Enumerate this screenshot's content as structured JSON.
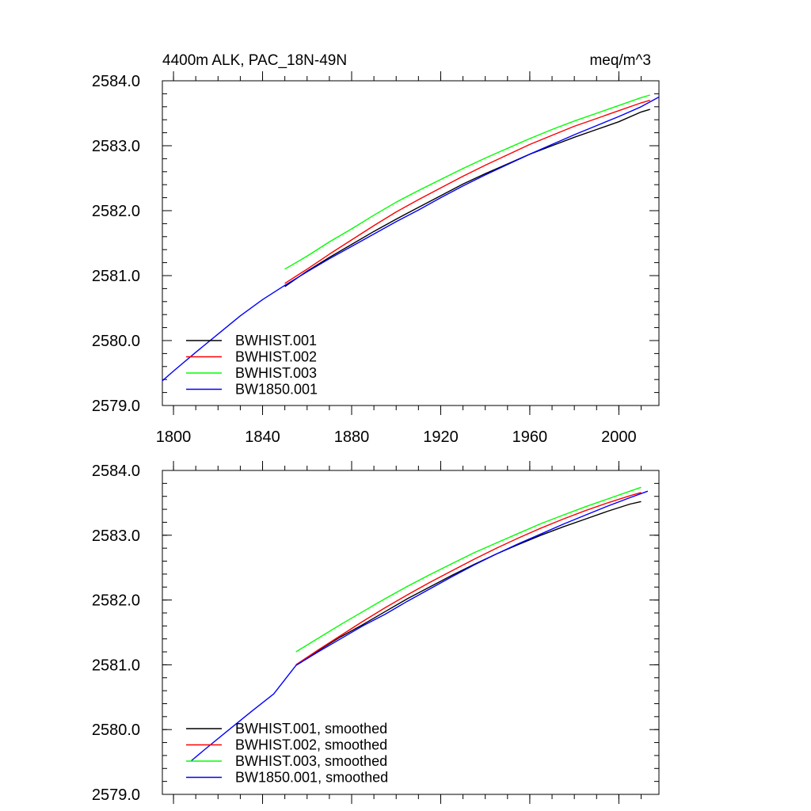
{
  "chart_data": [
    {
      "type": "line",
      "title_left": "4400m ALK, PAC_18N-49N",
      "title_right": "meq/m^3",
      "xlabel": "",
      "ylabel": "",
      "xlim": [
        1795,
        2018
      ],
      "ylim": [
        2579.0,
        2584.0
      ],
      "xticks": [
        1800,
        1840,
        1880,
        1920,
        1960,
        2000
      ],
      "xtick_labels": [
        "1800",
        "1840",
        "1880",
        "1920",
        "1960",
        "2000"
      ],
      "yticks": [
        2579.0,
        2580.0,
        2581.0,
        2582.0,
        2583.0,
        2584.0
      ],
      "ytick_labels": [
        "2579.0",
        "2580.0",
        "2581.0",
        "2582.0",
        "2583.0",
        "2584.0"
      ],
      "grid": false,
      "legend_position": "bottom-left",
      "series": [
        {
          "name": "BWHIST.001",
          "color": "#000000",
          "x": [
            1850,
            1860,
            1870,
            1880,
            1890,
            1900,
            1910,
            1920,
            1930,
            1940,
            1950,
            1960,
            1970,
            1980,
            1990,
            2000,
            2010,
            2014
          ],
          "y": [
            2580.83,
            2581.07,
            2581.28,
            2581.48,
            2581.68,
            2581.87,
            2582.05,
            2582.23,
            2582.41,
            2582.57,
            2582.72,
            2582.87,
            2583.0,
            2583.13,
            2583.25,
            2583.37,
            2583.52,
            2583.56
          ]
        },
        {
          "name": "BWHIST.002",
          "color": "#ff0000",
          "x": [
            1850,
            1860,
            1870,
            1880,
            1890,
            1900,
            1910,
            1920,
            1930,
            1940,
            1950,
            1960,
            1970,
            1980,
            1990,
            2000,
            2010,
            2014
          ],
          "y": [
            2580.88,
            2581.1,
            2581.33,
            2581.55,
            2581.77,
            2581.98,
            2582.17,
            2582.35,
            2582.53,
            2582.7,
            2582.86,
            2583.02,
            2583.16,
            2583.3,
            2583.42,
            2583.54,
            2583.66,
            2583.7
          ]
        },
        {
          "name": "BWHIST.003",
          "color": "#00ff00",
          "x": [
            1850,
            1860,
            1870,
            1880,
            1890,
            1900,
            1910,
            1920,
            1930,
            1940,
            1950,
            1960,
            1970,
            1980,
            1990,
            2000,
            2010,
            2014
          ],
          "y": [
            2581.1,
            2581.3,
            2581.52,
            2581.72,
            2581.93,
            2582.13,
            2582.31,
            2582.48,
            2582.65,
            2582.81,
            2582.96,
            2583.11,
            2583.25,
            2583.38,
            2583.5,
            2583.62,
            2583.74,
            2583.78
          ]
        },
        {
          "name": "BW1850.001",
          "color": "#0000ff",
          "x": [
            1795,
            1800,
            1810,
            1820,
            1830,
            1840,
            1850,
            1860,
            1870,
            1880,
            1890,
            1900,
            1910,
            1920,
            1930,
            1940,
            1950,
            1960,
            1970,
            1980,
            1990,
            2000,
            2010,
            2018
          ],
          "y": [
            2579.38,
            2579.53,
            2579.82,
            2580.1,
            2580.38,
            2580.63,
            2580.85,
            2581.06,
            2581.26,
            2581.45,
            2581.64,
            2581.83,
            2582.01,
            2582.2,
            2582.38,
            2582.55,
            2582.71,
            2582.87,
            2583.02,
            2583.17,
            2583.31,
            2583.45,
            2583.6,
            2583.75
          ]
        }
      ]
    },
    {
      "type": "line",
      "title_left": "",
      "title_right": "",
      "xlabel": "",
      "ylabel": "",
      "xlim": [
        1795,
        2018
      ],
      "ylim": [
        2579.0,
        2584.0
      ],
      "xticks": [
        1800,
        1840,
        1880,
        1920,
        1960,
        2000
      ],
      "xtick_labels": [],
      "yticks": [
        2579.0,
        2580.0,
        2581.0,
        2582.0,
        2583.0,
        2584.0
      ],
      "ytick_labels": [
        "2579.0",
        "2580.0",
        "2581.0",
        "2582.0",
        "2583.0",
        "2584.0"
      ],
      "grid": false,
      "legend_position": "bottom-left",
      "series": [
        {
          "name": "BWHIST.001, smoothed",
          "color": "#000000",
          "x": [
            1855,
            1865,
            1875,
            1885,
            1895,
            1905,
            1915,
            1925,
            1935,
            1945,
            1955,
            1965,
            1975,
            1985,
            1995,
            2005,
            2010
          ],
          "y": [
            2581.0,
            2581.22,
            2581.43,
            2581.62,
            2581.82,
            2582.02,
            2582.2,
            2582.38,
            2582.55,
            2582.71,
            2582.86,
            2583.0,
            2583.13,
            2583.25,
            2583.37,
            2583.48,
            2583.52
          ]
        },
        {
          "name": "BWHIST.002, smoothed",
          "color": "#ff0000",
          "x": [
            1855,
            1865,
            1875,
            1885,
            1895,
            1905,
            1915,
            1925,
            1935,
            1945,
            1955,
            1965,
            1975,
            1985,
            1995,
            2005,
            2010
          ],
          "y": [
            2581.0,
            2581.23,
            2581.45,
            2581.67,
            2581.88,
            2582.08,
            2582.27,
            2582.45,
            2582.63,
            2582.8,
            2582.96,
            2583.11,
            2583.25,
            2583.38,
            2583.5,
            2583.61,
            2583.66
          ]
        },
        {
          "name": "BWHIST.003, smoothed",
          "color": "#00ff00",
          "x": [
            1855,
            1865,
            1875,
            1885,
            1895,
            1905,
            1915,
            1925,
            1935,
            1945,
            1955,
            1965,
            1975,
            1985,
            1995,
            2005,
            2010
          ],
          "y": [
            2581.2,
            2581.41,
            2581.62,
            2581.82,
            2582.02,
            2582.21,
            2582.39,
            2582.56,
            2582.73,
            2582.88,
            2583.03,
            2583.18,
            2583.31,
            2583.44,
            2583.56,
            2583.68,
            2583.74
          ]
        },
        {
          "name": "BW1850.001, smoothed",
          "color": "#0000ff",
          "x": [
            1808,
            1815,
            1825,
            1835,
            1845,
            1855,
            1865,
            1875,
            1885,
            1895,
            1905,
            1915,
            1925,
            1935,
            1945,
            1955,
            1965,
            1975,
            1985,
            1995,
            2005,
            2013
          ],
          "y": [
            2579.52,
            2579.72,
            2580.0,
            2580.28,
            2580.55,
            2580.99,
            2581.2,
            2581.4,
            2581.6,
            2581.78,
            2581.98,
            2582.17,
            2582.36,
            2582.54,
            2582.71,
            2582.87,
            2583.02,
            2583.17,
            2583.31,
            2583.45,
            2583.58,
            2583.68
          ]
        }
      ]
    }
  ]
}
